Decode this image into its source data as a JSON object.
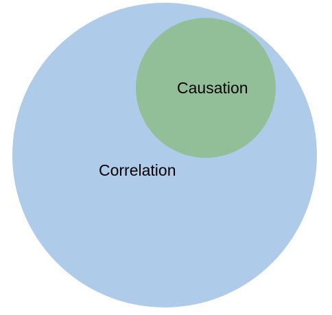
{
  "diagram": {
    "outer": {
      "label": "Correlation",
      "color": "#afcbea"
    },
    "inner": {
      "label": "Causation",
      "color": "#92bf98"
    }
  }
}
